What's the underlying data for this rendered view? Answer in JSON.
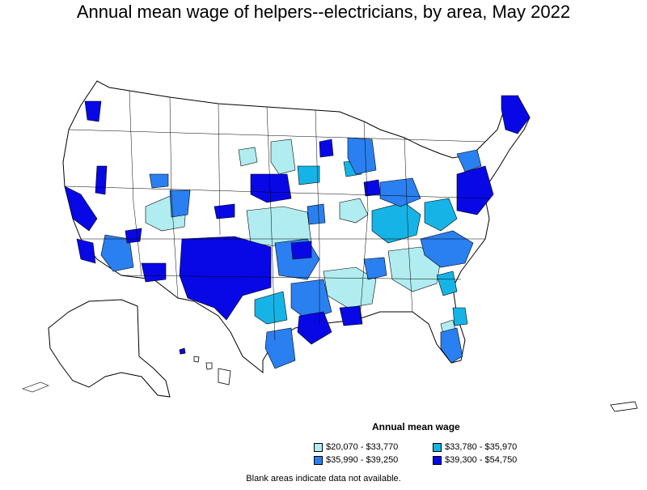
{
  "title": "Annual mean wage of helpers--electricians, by area, May 2022",
  "legend": {
    "title": "Annual mean wage",
    "items": [
      {
        "label": "$20,070 - $33,770",
        "color": "#b0ecf0"
      },
      {
        "label": "$33,780 - $35,970",
        "color": "#16b4e6"
      },
      {
        "label": "$35,990 - $39,250",
        "color": "#2a80f0"
      },
      {
        "label": "$39,300 - $54,750",
        "color": "#0808e6"
      }
    ]
  },
  "note": "Blank areas indicate data not available.",
  "colors": {
    "blank": "#ffffff",
    "border": "#000000"
  }
}
